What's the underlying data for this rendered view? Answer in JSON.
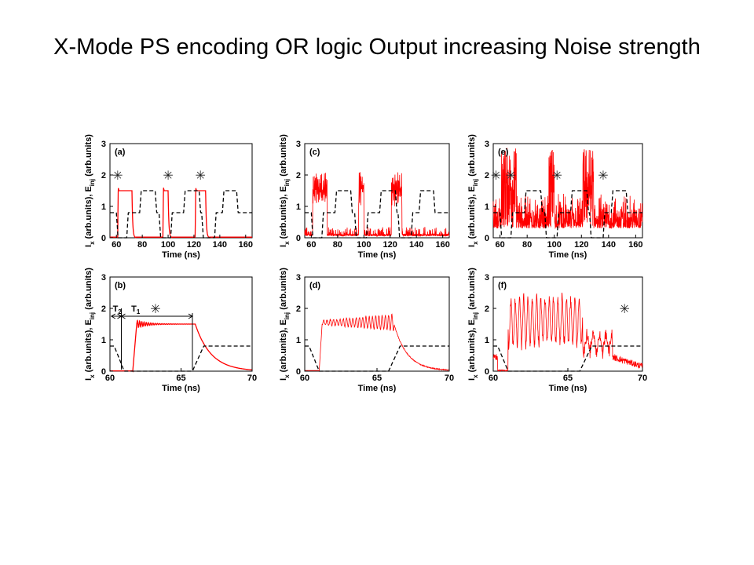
{
  "slide": {
    "title": "X-Mode PS encoding OR logic Output increasing Noise strength"
  },
  "chart_data": [
    {
      "panel": "(a)",
      "type": "line",
      "xlabel": "Time (ns)",
      "ylabel": "I_x (arb.units), E_inj (arb.units)",
      "xlim": [
        55,
        165
      ],
      "ylim": [
        0,
        3
      ],
      "xticks": [
        60,
        80,
        100,
        120,
        140,
        160
      ],
      "yticks": [
        0,
        1,
        2,
        3
      ],
      "noise": 0,
      "window": "long",
      "markers_x": [
        61,
        100,
        125
      ],
      "series": [
        {
          "name": "I_x",
          "color": "#ff0000",
          "style": "solid"
        },
        {
          "name": "E_inj",
          "color": "#000000",
          "style": "dashed"
        }
      ]
    },
    {
      "panel": "(c)",
      "type": "line",
      "xlabel": "Time (ns)",
      "ylabel": "I_x (arb.units), E_inj (arb.units)",
      "xlim": [
        55,
        165
      ],
      "ylim": [
        0,
        3
      ],
      "xticks": [
        60,
        80,
        100,
        120,
        140,
        160
      ],
      "yticks": [
        0,
        1,
        2,
        3
      ],
      "noise": 1,
      "window": "long",
      "markers_x": [],
      "series": [
        {
          "name": "I_x",
          "color": "#ff0000",
          "style": "solid"
        },
        {
          "name": "E_inj",
          "color": "#000000",
          "style": "dashed"
        }
      ]
    },
    {
      "panel": "(e)",
      "type": "line",
      "xlabel": "Time (ns)",
      "ylabel": "I_x (arb.units), E_inj (arb.units)",
      "xlim": [
        55,
        165
      ],
      "ylim": [
        0,
        3
      ],
      "xticks": [
        60,
        80,
        100,
        120,
        140,
        160
      ],
      "yticks": [
        0,
        1,
        2,
        3
      ],
      "noise": 2,
      "window": "long",
      "markers_x": [
        57,
        68,
        102,
        136
      ],
      "series": [
        {
          "name": "I_x",
          "color": "#ff0000",
          "style": "solid"
        },
        {
          "name": "E_inj",
          "color": "#000000",
          "style": "dashed"
        }
      ]
    },
    {
      "panel": "(b)",
      "type": "line",
      "xlabel": "Time (ns)",
      "ylabel": "I_x (arb.units), E_inj (arb.units)",
      "xlim": [
        60,
        70
      ],
      "ylim": [
        0,
        3
      ],
      "xticks": [
        60,
        65,
        70
      ],
      "yticks": [
        0,
        1,
        2,
        3
      ],
      "noise": 0,
      "window": "short",
      "markers_x": [
        63.2
      ],
      "annotations": {
        "T2": "T",
        "T2_sub": "2",
        "T1": "T",
        "T1_sub": "1"
      },
      "series": [
        {
          "name": "I_x",
          "color": "#ff0000",
          "style": "solid"
        },
        {
          "name": "E_inj",
          "color": "#000000",
          "style": "dashed"
        }
      ]
    },
    {
      "panel": "(d)",
      "type": "line",
      "xlabel": "Time (ns)",
      "ylabel": "I_x (arb.units), E_inj (arb.units)",
      "xlim": [
        60,
        70
      ],
      "ylim": [
        0,
        3
      ],
      "xticks": [
        60,
        65,
        70
      ],
      "yticks": [
        0,
        1,
        2,
        3
      ],
      "noise": 1,
      "window": "short",
      "markers_x": [],
      "series": [
        {
          "name": "I_x",
          "color": "#ff0000",
          "style": "solid"
        },
        {
          "name": "E_inj",
          "color": "#000000",
          "style": "dashed"
        }
      ]
    },
    {
      "panel": "(f)",
      "type": "line",
      "xlabel": "Time (ns)",
      "ylabel": "I_x (arb.units), E_inj (arb.units)",
      "xlim": [
        60,
        70
      ],
      "ylim": [
        0,
        3
      ],
      "xticks": [
        60,
        65,
        70
      ],
      "yticks": [
        0,
        1,
        2,
        3
      ],
      "noise": 2,
      "window": "short",
      "markers_x": [
        68.8
      ],
      "series": [
        {
          "name": "I_x",
          "color": "#ff0000",
          "style": "solid"
        },
        {
          "name": "E_inj",
          "color": "#000000",
          "style": "dashed"
        }
      ]
    }
  ],
  "marker_glyph": "✳"
}
